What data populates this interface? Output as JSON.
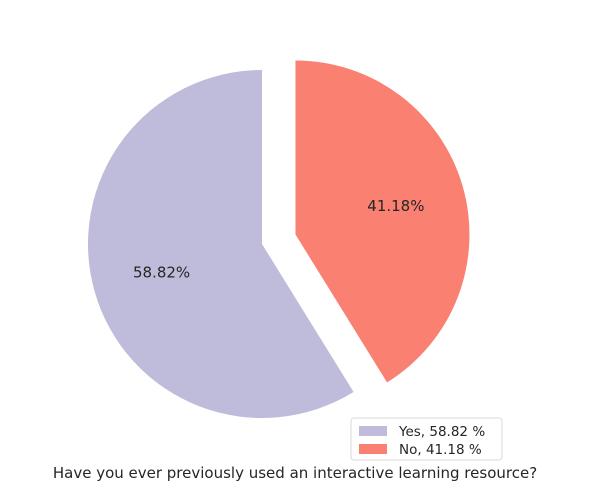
{
  "chart_data": {
    "type": "pie",
    "title": "",
    "xlabel": "Have you ever previously used an interactive learning resource?",
    "slices": [
      {
        "label": "Yes",
        "value": 58.82,
        "pct_label": "58.82%",
        "legend_label": "Yes, 58.82 %",
        "color": "#bfbbda",
        "exploded": false
      },
      {
        "label": "No",
        "value": 41.18,
        "pct_label": "41.18%",
        "legend_label": "No, 41.18 %",
        "color": "#fa8071",
        "exploded": true
      }
    ],
    "start_angle_deg": 90,
    "direction": "counterclockwise",
    "legend_position": "lower-right"
  }
}
